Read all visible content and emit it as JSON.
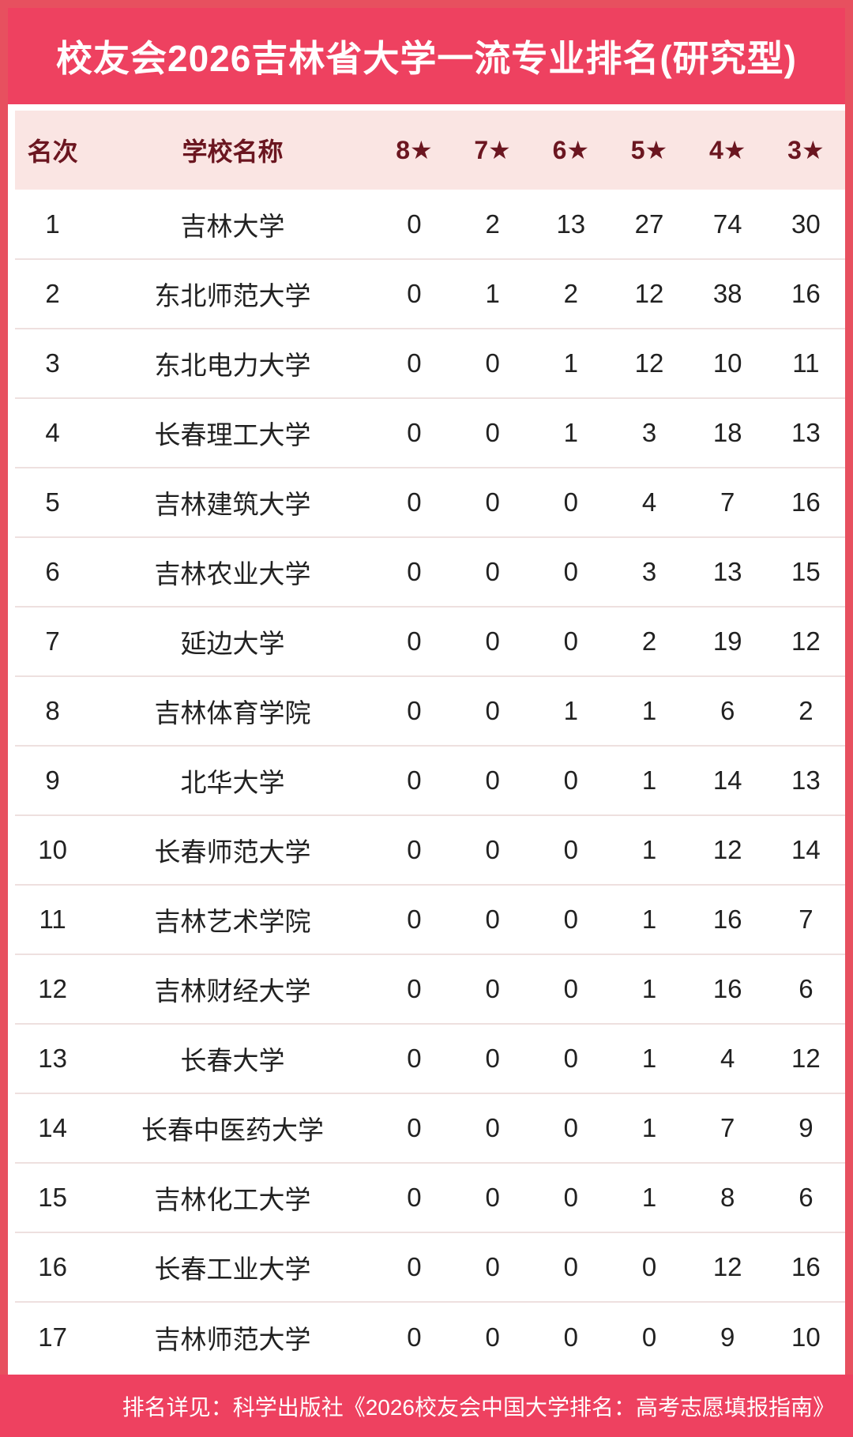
{
  "header": {
    "title": "校友会2026吉林省大学一流专业排名(研究型)"
  },
  "chart_data": {
    "type": "table",
    "title": "校友会2026吉林省大学一流专业排名(研究型)",
    "columns": [
      "名次",
      "学校名称",
      "8★",
      "7★",
      "6★",
      "5★",
      "4★",
      "3★"
    ],
    "rows": [
      [
        "1",
        "吉林大学",
        "0",
        "2",
        "13",
        "27",
        "74",
        "30"
      ],
      [
        "2",
        "东北师范大学",
        "0",
        "1",
        "2",
        "12",
        "38",
        "16"
      ],
      [
        "3",
        "东北电力大学",
        "0",
        "0",
        "1",
        "12",
        "10",
        "11"
      ],
      [
        "4",
        "长春理工大学",
        "0",
        "0",
        "1",
        "3",
        "18",
        "13"
      ],
      [
        "5",
        "吉林建筑大学",
        "0",
        "0",
        "0",
        "4",
        "7",
        "16"
      ],
      [
        "6",
        "吉林农业大学",
        "0",
        "0",
        "0",
        "3",
        "13",
        "15"
      ],
      [
        "7",
        "延边大学",
        "0",
        "0",
        "0",
        "2",
        "19",
        "12"
      ],
      [
        "8",
        "吉林体育学院",
        "0",
        "0",
        "1",
        "1",
        "6",
        "2"
      ],
      [
        "9",
        "北华大学",
        "0",
        "0",
        "0",
        "1",
        "14",
        "13"
      ],
      [
        "10",
        "长春师范大学",
        "0",
        "0",
        "0",
        "1",
        "12",
        "14"
      ],
      [
        "11",
        "吉林艺术学院",
        "0",
        "0",
        "0",
        "1",
        "16",
        "7"
      ],
      [
        "12",
        "吉林财经大学",
        "0",
        "0",
        "0",
        "1",
        "16",
        "6"
      ],
      [
        "13",
        "长春大学",
        "0",
        "0",
        "0",
        "1",
        "4",
        "12"
      ],
      [
        "14",
        "长春中医药大学",
        "0",
        "0",
        "0",
        "1",
        "7",
        "9"
      ],
      [
        "15",
        "吉林化工大学",
        "0",
        "0",
        "0",
        "1",
        "8",
        "6"
      ],
      [
        "16",
        "长春工业大学",
        "0",
        "0",
        "0",
        "0",
        "12",
        "16"
      ],
      [
        "17",
        "吉林师范大学",
        "0",
        "0",
        "0",
        "0",
        "9",
        "10"
      ]
    ],
    "legend": [],
    "layout": {
      "grid": "horizontal-row-separators",
      "header_background": "pink",
      "title_position": "top-banner"
    }
  },
  "footer": {
    "note": "排名详见：科学出版社《2026校友会中国大学排名：高考志愿填报指南》"
  },
  "colors": {
    "banner_red": "#ee4160",
    "border_red": "#e7505f",
    "header_pink": "#fae5e3",
    "header_text_maroon": "#6b1620",
    "body_text": "#212121",
    "row_separator": "#eee0df",
    "banner_text": "#ffffff"
  }
}
